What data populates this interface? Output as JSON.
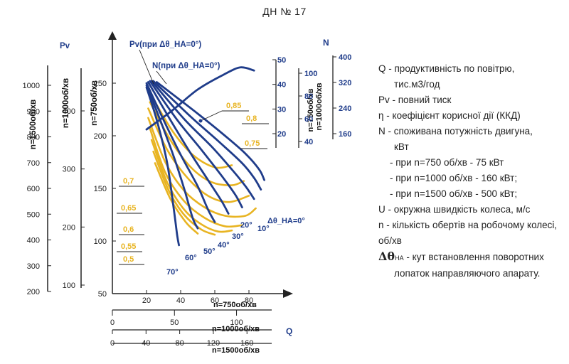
{
  "page": {
    "title": "ДН № 17"
  },
  "legend": {
    "items": [
      {
        "key": "q",
        "line1": "Q - продуктивність по повітрю,",
        "line2": "тис.м3/год"
      },
      {
        "key": "pv",
        "line1": "Pv - повний тиск"
      },
      {
        "key": "eta",
        "line1": "η - коефіцієнт корисної дії (ККД)"
      },
      {
        "key": "n",
        "line1": "N - споживана потужність двигуна,",
        "line2": "кВт"
      },
      {
        "key": "p750",
        "line1": "- при n=750 об/хв - 75 кВт"
      },
      {
        "key": "p1000",
        "line1": "- при n=1000 об/хв - 160 кВт;"
      },
      {
        "key": "p1500",
        "line1": "- при n=1500 об/хв - 500 кВт;"
      },
      {
        "key": "u",
        "line1": "U - окружна швидкість колеса, м/с"
      },
      {
        "key": "nrev",
        "line1": "n - кількість обертів на робочому колесі,",
        "line2": "об/хв"
      }
    ],
    "dtheta": {
      "symbol": "Δθ",
      "sub": "НА",
      "text": "- кут встановлення поворотних",
      "line2": "лопаток направляючого апарату."
    }
  },
  "chart_data": {
    "type": "line",
    "title": "ДН № 17",
    "y_axes": [
      {
        "label": "n=1500об/хв",
        "ticks": [
          200,
          300,
          400,
          500,
          600,
          700,
          800,
          900,
          1000
        ]
      },
      {
        "label": "n=1000об/хв",
        "ticks": [
          100,
          200,
          300,
          400
        ]
      },
      {
        "label": "n=750об/хв",
        "ticks": [
          50,
          100,
          150,
          200,
          250
        ],
        "ylim": [
          50,
          270
        ]
      }
    ],
    "pv_axis_label": "Pv",
    "n_axis_label": "N",
    "n_axes": [
      {
        "label": "n=750об/хв",
        "ticks": [
          20,
          30,
          40,
          50
        ]
      },
      {
        "label": "n=1000об/хв",
        "ticks": [
          40,
          60,
          80,
          100
        ]
      },
      {
        "label": "n=1500об/хв",
        "ticks": [
          160,
          240,
          320,
          400
        ]
      }
    ],
    "x_axes": [
      {
        "label": "n=750об/хв",
        "ticks": [
          20,
          40,
          60,
          80
        ],
        "xlim": [
          0,
          100
        ]
      },
      {
        "label": "n=1000об/хв",
        "ticks": [
          0,
          50,
          100
        ]
      },
      {
        "label": "n=1500об/хв",
        "ticks": [
          0,
          40,
          80,
          120,
          160
        ]
      }
    ],
    "x_axis_label": "Q",
    "pressure_curves": [
      {
        "name": "70°",
        "points": [
          [
            20,
            246
          ],
          [
            26,
            215
          ],
          [
            32,
            175
          ],
          [
            36,
            130
          ],
          [
            38,
            105
          ],
          [
            39,
            96
          ]
        ]
      },
      {
        "name": "60°",
        "points": [
          [
            20,
            248
          ],
          [
            28,
            215
          ],
          [
            36,
            180
          ],
          [
            42,
            150
          ],
          [
            47,
            122
          ],
          [
            50,
            112
          ]
        ]
      },
      {
        "name": "50°",
        "points": [
          [
            20,
            250
          ],
          [
            30,
            215
          ],
          [
            40,
            182
          ],
          [
            50,
            152
          ],
          [
            56,
            130
          ],
          [
            60,
            118
          ]
        ]
      },
      {
        "name": "40°",
        "points": [
          [
            21,
            251
          ],
          [
            34,
            215
          ],
          [
            46,
            183
          ],
          [
            56,
            158
          ],
          [
            64,
            138
          ],
          [
            68,
            126
          ]
        ]
      },
      {
        "name": "30°",
        "points": [
          [
            22,
            252
          ],
          [
            38,
            215
          ],
          [
            52,
            187
          ],
          [
            64,
            162
          ],
          [
            72,
            144
          ],
          [
            76,
            132
          ]
        ]
      },
      {
        "name": "20°",
        "points": [
          [
            23,
            252
          ],
          [
            42,
            216
          ],
          [
            58,
            190
          ],
          [
            70,
            168
          ],
          [
            78,
            152
          ],
          [
            83,
            140
          ]
        ]
      },
      {
        "name": "10°",
        "points": [
          [
            24,
            252
          ],
          [
            46,
            218
          ],
          [
            62,
            195
          ],
          [
            76,
            174
          ],
          [
            83,
            160
          ],
          [
            87,
            149
          ]
        ]
      },
      {
        "name": "0°",
        "points": [
          [
            26,
            251
          ],
          [
            50,
            221
          ],
          [
            66,
            200
          ],
          [
            78,
            183
          ],
          [
            86,
            168
          ],
          [
            89,
            158
          ]
        ]
      }
    ],
    "power_curve": {
      "name": "N(при Δθ_НА=0°)",
      "points": [
        [
          20,
          206
        ],
        [
          35,
          224
        ],
        [
          50,
          244
        ],
        [
          65,
          258
        ],
        [
          75,
          265
        ],
        [
          83,
          262
        ]
      ]
    },
    "efficiency_labels": [
      "0,85",
      "0,8",
      "0,75",
      "0,7",
      "0,65",
      "0,6",
      "0,55",
      "0,5"
    ],
    "efficiency_curves": [
      {
        "name": "0,85",
        "points": [
          [
            23,
            238
          ],
          [
            35,
            205
          ],
          [
            47,
            182
          ],
          [
            60,
            170
          ],
          [
            70,
            172
          ]
        ]
      },
      {
        "name": "0,8",
        "points": [
          [
            22,
            232
          ],
          [
            34,
            196
          ],
          [
            46,
            170
          ],
          [
            58,
            156
          ],
          [
            70,
            153
          ],
          [
            77,
            157
          ]
        ]
      },
      {
        "name": "0,75",
        "points": [
          [
            21,
            226
          ],
          [
            32,
            187
          ],
          [
            44,
            160
          ],
          [
            56,
            143
          ],
          [
            68,
            137
          ],
          [
            80,
            143
          ]
        ]
      },
      {
        "name": "0,7",
        "points": [
          [
            21,
            217
          ],
          [
            31,
            175
          ],
          [
            42,
            148
          ],
          [
            54,
            132
          ],
          [
            66,
            124
          ],
          [
            78,
            124
          ],
          [
            84,
            131
          ]
        ]
      },
      {
        "name": "0,65",
        "points": [
          [
            22,
            207
          ],
          [
            31,
            165
          ],
          [
            42,
            138
          ],
          [
            54,
            122
          ],
          [
            66,
            114
          ],
          [
            76,
            115
          ]
        ]
      },
      {
        "name": "0,6",
        "points": [
          [
            23,
            196
          ],
          [
            32,
            156
          ],
          [
            42,
            130
          ],
          [
            52,
            116
          ],
          [
            62,
            109
          ],
          [
            70,
            110
          ]
        ]
      },
      {
        "name": "0,55",
        "points": [
          [
            24,
            185
          ],
          [
            33,
            148
          ],
          [
            42,
            125
          ],
          [
            52,
            111
          ],
          [
            60,
            106
          ]
        ]
      },
      {
        "name": "0,5",
        "points": [
          [
            25,
            174
          ],
          [
            34,
            140
          ],
          [
            43,
            118
          ],
          [
            50,
            107
          ]
        ]
      }
    ],
    "curve_labels": [
      "Pv(при Δθ_НА=0°)",
      "N(при Δθ_НА=0°)",
      "Δθ_НА=0°",
      "10°",
      "20°",
      "30°",
      "40°",
      "50°",
      "60°",
      "70°"
    ],
    "colors": {
      "pressure": "#1f3c8a",
      "efficiency": "#e8b422",
      "axis": "#222222",
      "text_blue": "#1f3c8a"
    }
  }
}
